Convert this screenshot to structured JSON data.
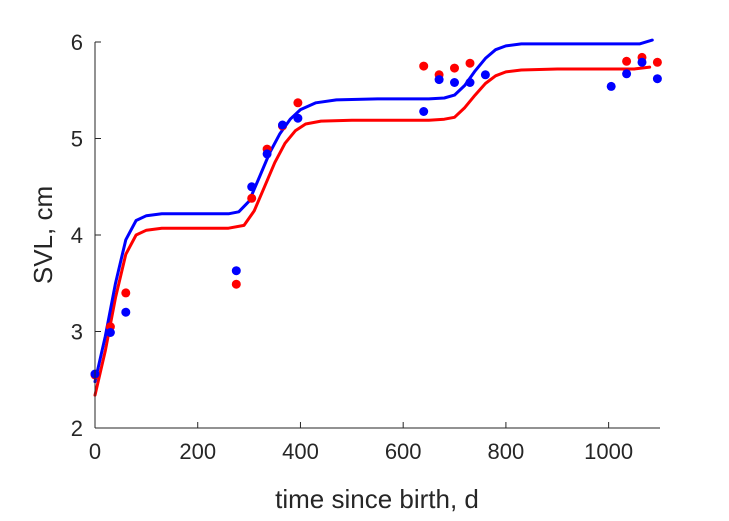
{
  "chart_data": {
    "type": "scatter",
    "title": "",
    "xlabel": "time since birth, d",
    "ylabel": "SVL, cm",
    "xlim": [
      0,
      1100
    ],
    "ylim": [
      2,
      6
    ],
    "xticks": [
      0,
      200,
      400,
      600,
      800,
      1000
    ],
    "yticks": [
      2,
      3,
      4,
      5,
      6
    ],
    "xtick_labels": [
      "0",
      "200",
      "400",
      "600",
      "800",
      "1000"
    ],
    "ytick_labels": [
      "2",
      "3",
      "4",
      "5",
      "6"
    ],
    "grid": false,
    "series": [
      {
        "kind": "points",
        "color": "#ff0000",
        "points": [
          [
            0,
            2.55
          ],
          [
            30,
            3.05
          ],
          [
            60,
            3.4
          ],
          [
            275,
            3.49
          ],
          [
            305,
            4.38
          ],
          [
            335,
            4.89
          ],
          [
            365,
            5.13
          ],
          [
            395,
            5.37
          ],
          [
            640,
            5.75
          ],
          [
            670,
            5.66
          ],
          [
            700,
            5.73
          ],
          [
            730,
            5.78
          ],
          [
            1035,
            5.8
          ],
          [
            1065,
            5.84
          ],
          [
            1095,
            5.79
          ]
        ]
      },
      {
        "kind": "points",
        "color": "#0000ff",
        "points": [
          [
            0,
            2.56
          ],
          [
            30,
            2.99
          ],
          [
            60,
            3.2
          ],
          [
            275,
            3.63
          ],
          [
            305,
            4.5
          ],
          [
            335,
            4.84
          ],
          [
            365,
            5.14
          ],
          [
            395,
            5.21
          ],
          [
            640,
            5.28
          ],
          [
            670,
            5.61
          ],
          [
            700,
            5.58
          ],
          [
            730,
            5.58
          ],
          [
            760,
            5.66
          ],
          [
            1005,
            5.54
          ],
          [
            1035,
            5.67
          ],
          [
            1065,
            5.79
          ],
          [
            1095,
            5.62
          ]
        ]
      },
      {
        "kind": "curve",
        "color": "#ff0000",
        "points": [
          [
            0,
            2.34
          ],
          [
            20,
            2.8
          ],
          [
            40,
            3.35
          ],
          [
            60,
            3.8
          ],
          [
            80,
            4.0
          ],
          [
            100,
            4.05
          ],
          [
            130,
            4.07
          ],
          [
            200,
            4.07
          ],
          [
            260,
            4.07
          ],
          [
            290,
            4.1
          ],
          [
            310,
            4.25
          ],
          [
            330,
            4.5
          ],
          [
            350,
            4.75
          ],
          [
            370,
            4.95
          ],
          [
            390,
            5.08
          ],
          [
            410,
            5.15
          ],
          [
            440,
            5.18
          ],
          [
            500,
            5.19
          ],
          [
            600,
            5.19
          ],
          [
            650,
            5.19
          ],
          [
            680,
            5.2
          ],
          [
            700,
            5.22
          ],
          [
            720,
            5.32
          ],
          [
            740,
            5.45
          ],
          [
            760,
            5.57
          ],
          [
            780,
            5.65
          ],
          [
            800,
            5.69
          ],
          [
            830,
            5.71
          ],
          [
            900,
            5.72
          ],
          [
            1000,
            5.72
          ],
          [
            1050,
            5.72
          ],
          [
            1080,
            5.74
          ]
        ]
      },
      {
        "kind": "curve",
        "color": "#0000ff",
        "points": [
          [
            0,
            2.48
          ],
          [
            20,
            2.95
          ],
          [
            40,
            3.5
          ],
          [
            60,
            3.95
          ],
          [
            80,
            4.15
          ],
          [
            100,
            4.2
          ],
          [
            130,
            4.22
          ],
          [
            200,
            4.22
          ],
          [
            260,
            4.22
          ],
          [
            280,
            4.24
          ],
          [
            300,
            4.35
          ],
          [
            320,
            4.6
          ],
          [
            340,
            4.85
          ],
          [
            360,
            5.05
          ],
          [
            380,
            5.2
          ],
          [
            400,
            5.3
          ],
          [
            430,
            5.37
          ],
          [
            470,
            5.4
          ],
          [
            550,
            5.41
          ],
          [
            650,
            5.41
          ],
          [
            680,
            5.42
          ],
          [
            700,
            5.45
          ],
          [
            720,
            5.55
          ],
          [
            740,
            5.7
          ],
          [
            760,
            5.83
          ],
          [
            780,
            5.92
          ],
          [
            800,
            5.96
          ],
          [
            830,
            5.98
          ],
          [
            900,
            5.98
          ],
          [
            1000,
            5.98
          ],
          [
            1060,
            5.98
          ],
          [
            1085,
            6.02
          ]
        ]
      }
    ]
  }
}
